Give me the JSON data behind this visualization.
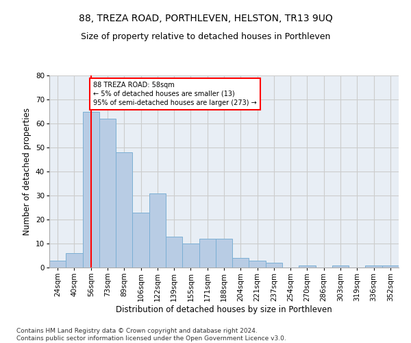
{
  "title": "88, TREZA ROAD, PORTHLEVEN, HELSTON, TR13 9UQ",
  "subtitle": "Size of property relative to detached houses in Porthleven",
  "xlabel": "Distribution of detached houses by size in Porthleven",
  "ylabel": "Number of detached properties",
  "categories": [
    "24sqm",
    "40sqm",
    "56sqm",
    "73sqm",
    "89sqm",
    "106sqm",
    "122sqm",
    "139sqm",
    "155sqm",
    "171sqm",
    "188sqm",
    "204sqm",
    "221sqm",
    "237sqm",
    "254sqm",
    "270sqm",
    "286sqm",
    "303sqm",
    "319sqm",
    "336sqm",
    "352sqm"
  ],
  "values": [
    3,
    6,
    65,
    62,
    48,
    23,
    31,
    13,
    10,
    12,
    12,
    4,
    3,
    2,
    0,
    1,
    0,
    1,
    0,
    1,
    1
  ],
  "bar_color": "#b8cce4",
  "bar_edge_color": "#7bafd4",
  "annotation_line1": "88 TREZA ROAD: 58sqm",
  "annotation_line2": "← 5% of detached houses are smaller (13)",
  "annotation_line3": "95% of semi-detached houses are larger (273) →",
  "annotation_box_color": "white",
  "annotation_box_edge_color": "red",
  "vline_category": "56sqm",
  "ylim": [
    0,
    80
  ],
  "yticks": [
    0,
    10,
    20,
    30,
    40,
    50,
    60,
    70,
    80
  ],
  "grid_color": "#cccccc",
  "bg_color": "#e8eef5",
  "title_fontsize": 10,
  "subtitle_fontsize": 9,
  "axis_label_fontsize": 8.5,
  "tick_fontsize": 7.5,
  "footer_text": "Contains HM Land Registry data © Crown copyright and database right 2024.\nContains public sector information licensed under the Open Government Licence v3.0.",
  "footer_fontsize": 6.5
}
